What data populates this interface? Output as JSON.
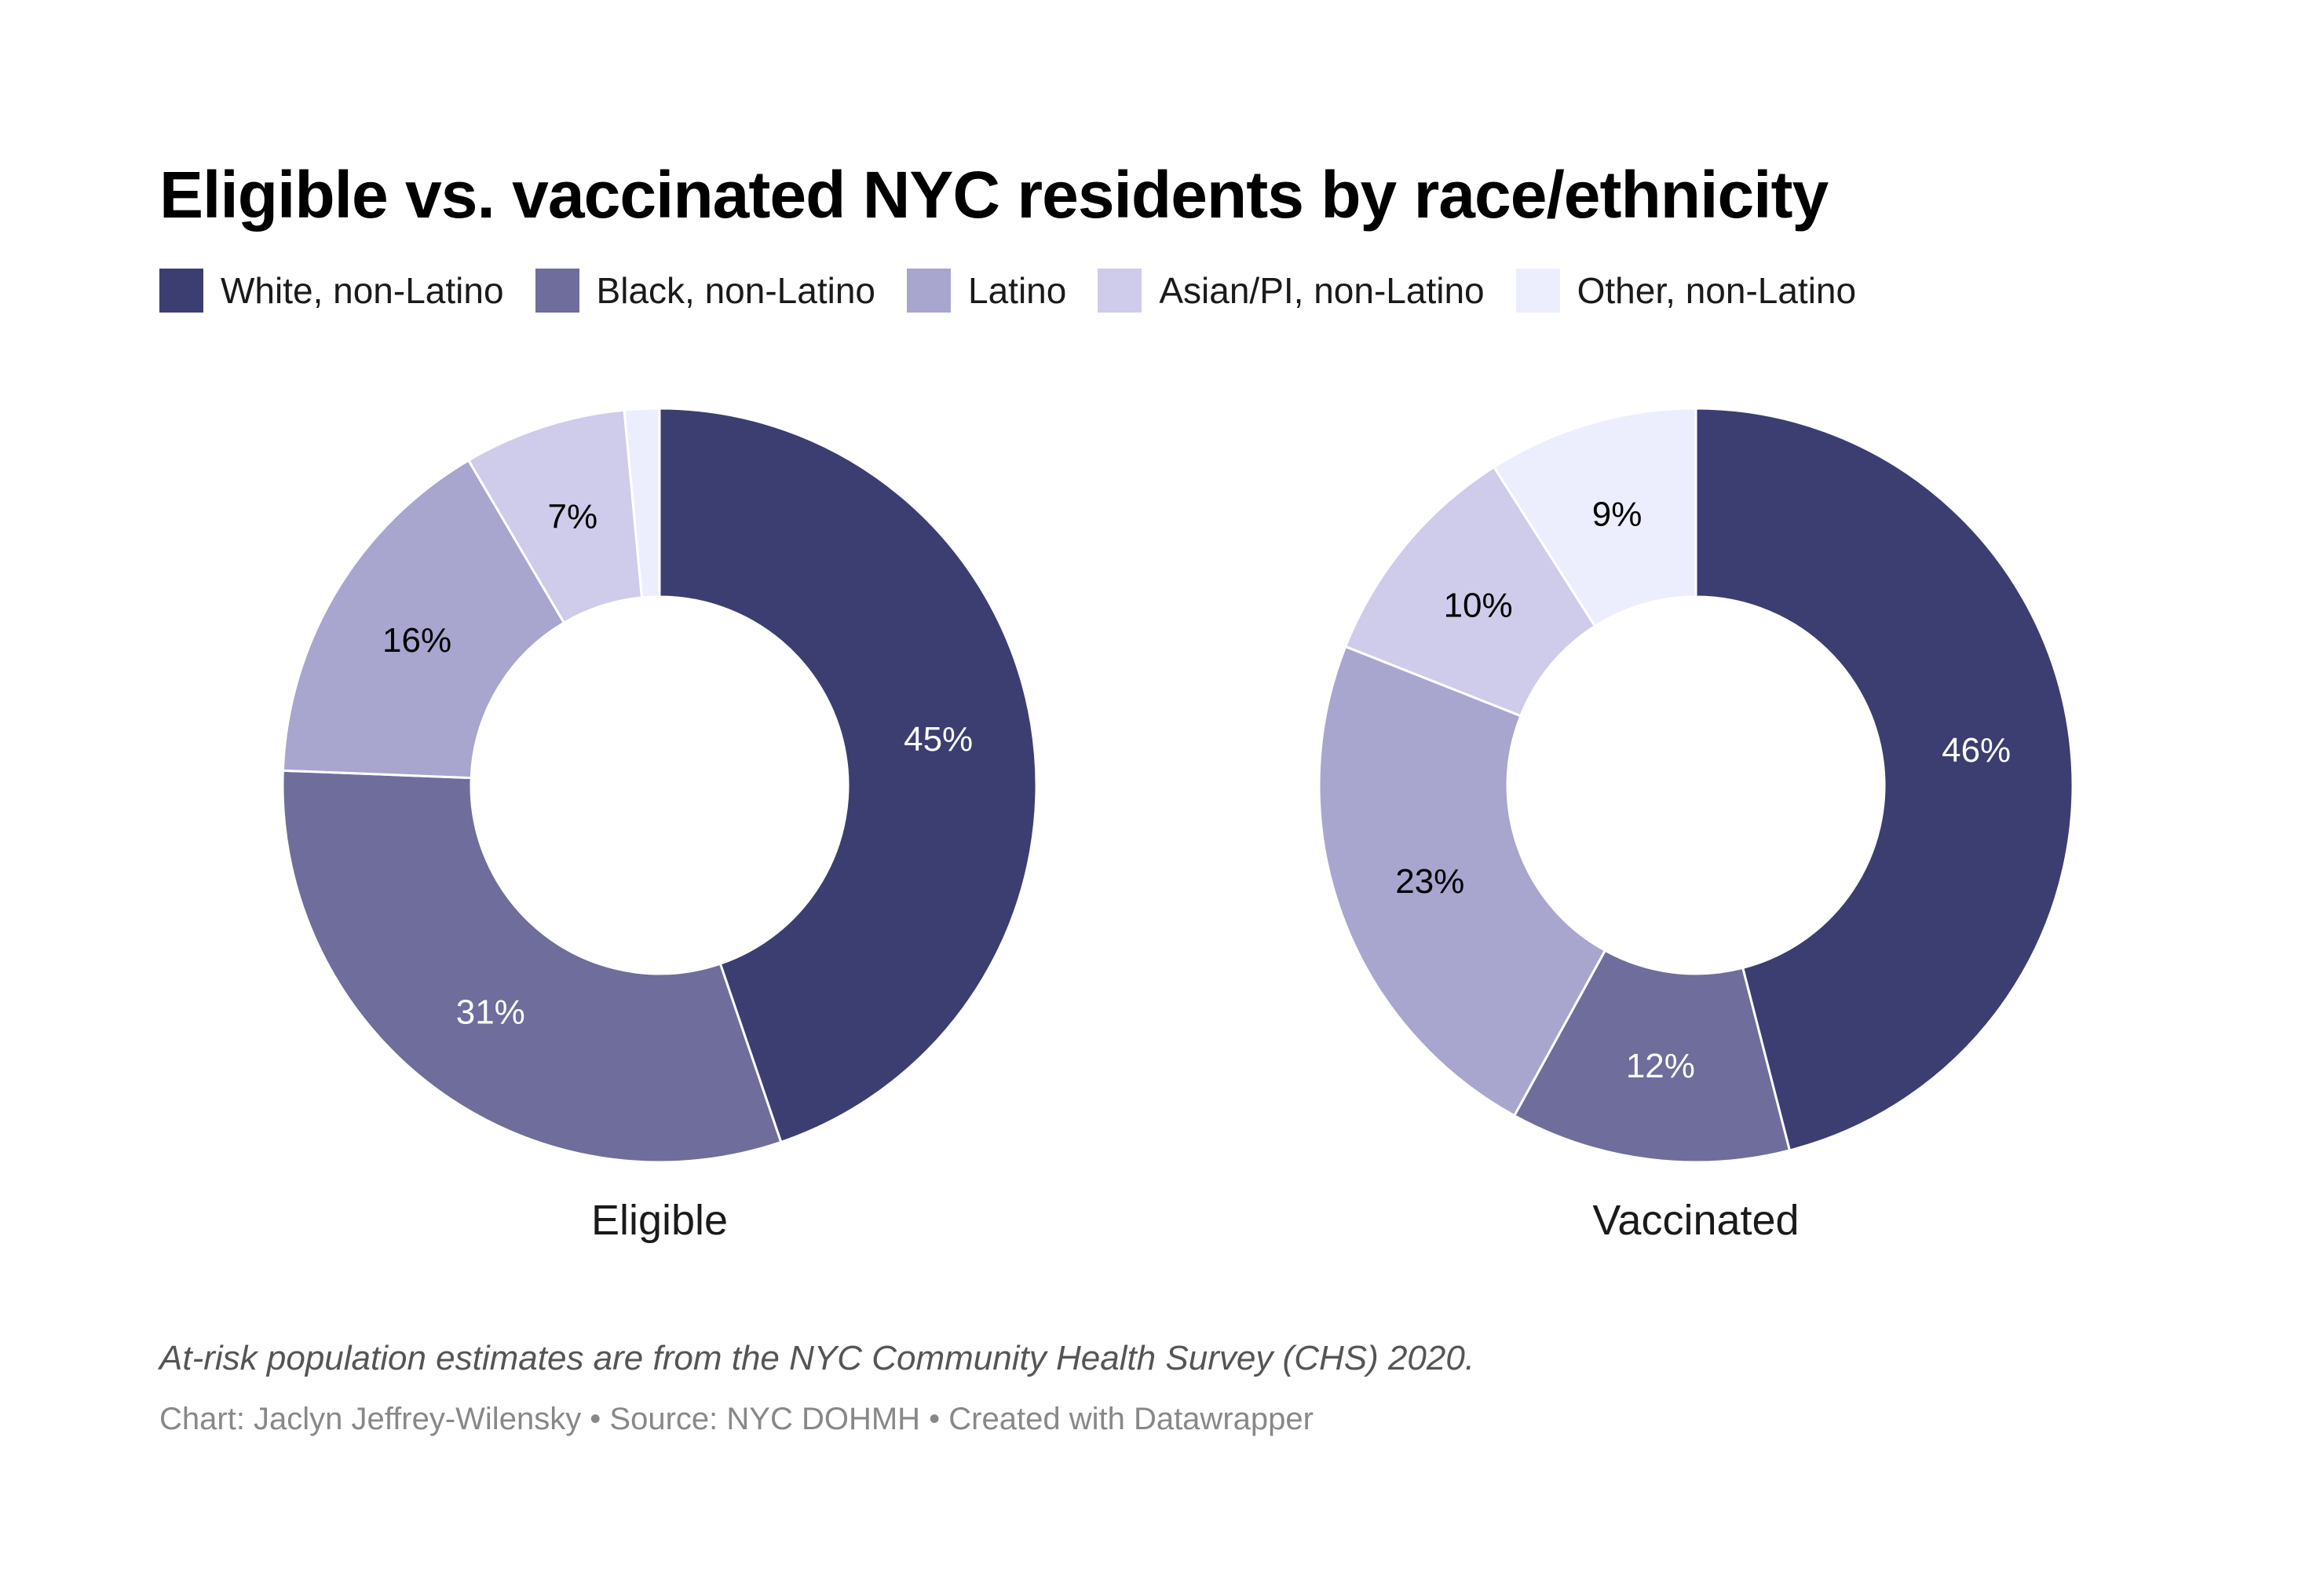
{
  "header": {
    "title": "Eligible vs. vaccinated NYC residents by race/ethnicity"
  },
  "legend": {
    "items": [
      {
        "label": "White, non-Latino",
        "color": "#3c3e72"
      },
      {
        "label": "Black, non-Latino",
        "color": "#6e6d9c"
      },
      {
        "label": "Latino",
        "color": "#a8a5cf"
      },
      {
        "label": "Asian/PI, non-Latino",
        "color": "#cfcbea"
      },
      {
        "label": "Other, non-Latino",
        "color": "#eceefd"
      }
    ]
  },
  "charts": {
    "eligible": {
      "label": "Eligible",
      "slices": [
        {
          "name": "White, non-Latino",
          "value": 45,
          "text": "45%"
        },
        {
          "name": "Black, non-Latino",
          "value": 31,
          "text": "31%"
        },
        {
          "name": "Latino",
          "value": 16,
          "text": "16%"
        },
        {
          "name": "Asian/PI, non-Latino",
          "value": 7,
          "text": "7%"
        },
        {
          "name": "Other, non-Latino",
          "value": 1.5,
          "text": ""
        }
      ]
    },
    "vaccinated": {
      "label": "Vaccinated",
      "slices": [
        {
          "name": "White, non-Latino",
          "value": 46,
          "text": "46%"
        },
        {
          "name": "Black, non-Latino",
          "value": 12,
          "text": "12%"
        },
        {
          "name": "Latino",
          "value": 23,
          "text": "23%"
        },
        {
          "name": "Asian/PI, non-Latino",
          "value": 10,
          "text": "10%"
        },
        {
          "name": "Other, non-Latino",
          "value": 9,
          "text": "9%"
        }
      ]
    }
  },
  "footer": {
    "notes": "At-risk population estimates are from the NYC Community Health Survey (CHS) 2020.",
    "byline": "Chart: Jaclyn Jeffrey-Wilensky • Source: NYC DOHMH • Created with Datawrapper"
  },
  "chart_data": [
    {
      "type": "pie",
      "title": "Eligible",
      "categories": [
        "White, non-Latino",
        "Black, non-Latino",
        "Latino",
        "Asian/PI, non-Latino",
        "Other, non-Latino"
      ],
      "values": [
        45,
        31,
        16,
        7,
        1.5
      ],
      "colors": [
        "#3c3e72",
        "#6e6d9c",
        "#a8a5cf",
        "#cfcbea",
        "#eceefd"
      ],
      "donut": true,
      "legend_position": "top"
    },
    {
      "type": "pie",
      "title": "Vaccinated",
      "categories": [
        "White, non-Latino",
        "Black, non-Latino",
        "Latino",
        "Asian/PI, non-Latino",
        "Other, non-Latino"
      ],
      "values": [
        46,
        12,
        23,
        10,
        9
      ],
      "colors": [
        "#3c3e72",
        "#6e6d9c",
        "#a8a5cf",
        "#cfcbea",
        "#eceefd"
      ],
      "donut": true,
      "legend_position": "top"
    }
  ]
}
